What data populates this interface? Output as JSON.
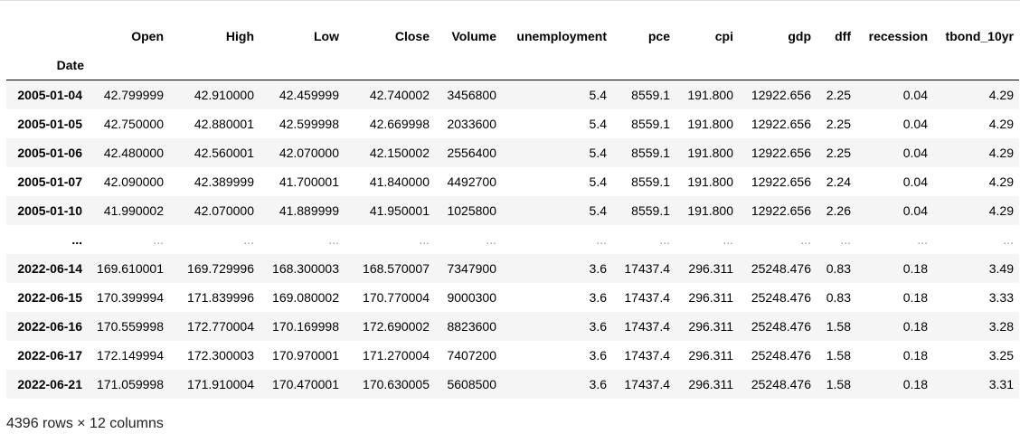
{
  "table": {
    "index_name": "Date",
    "columns": [
      "Open",
      "High",
      "Low",
      "Close",
      "Volume",
      "unemployment",
      "pce",
      "cpi",
      "gdp",
      "dff",
      "recession",
      "tbond_10yr"
    ],
    "rows": [
      {
        "date": "2005-01-04",
        "cells": [
          "42.799999",
          "42.910000",
          "42.459999",
          "42.740002",
          "3456800",
          "5.4",
          "8559.1",
          "191.800",
          "12922.656",
          "2.25",
          "0.04",
          "4.29"
        ]
      },
      {
        "date": "2005-01-05",
        "cells": [
          "42.750000",
          "42.880001",
          "42.599998",
          "42.669998",
          "2033600",
          "5.4",
          "8559.1",
          "191.800",
          "12922.656",
          "2.25",
          "0.04",
          "4.29"
        ]
      },
      {
        "date": "2005-01-06",
        "cells": [
          "42.480000",
          "42.560001",
          "42.070000",
          "42.150002",
          "2556400",
          "5.4",
          "8559.1",
          "191.800",
          "12922.656",
          "2.25",
          "0.04",
          "4.29"
        ]
      },
      {
        "date": "2005-01-07",
        "cells": [
          "42.090000",
          "42.389999",
          "41.700001",
          "41.840000",
          "4492700",
          "5.4",
          "8559.1",
          "191.800",
          "12922.656",
          "2.24",
          "0.04",
          "4.29"
        ]
      },
      {
        "date": "2005-01-10",
        "cells": [
          "41.990002",
          "42.070000",
          "41.889999",
          "41.950001",
          "1025800",
          "5.4",
          "8559.1",
          "191.800",
          "12922.656",
          "2.26",
          "0.04",
          "4.29"
        ]
      },
      {
        "date": "...",
        "cells": [
          "...",
          "...",
          "...",
          "...",
          "...",
          "...",
          "...",
          "...",
          "...",
          "...",
          "...",
          "..."
        ]
      },
      {
        "date": "2022-06-14",
        "cells": [
          "169.610001",
          "169.729996",
          "168.300003",
          "168.570007",
          "7347900",
          "3.6",
          "17437.4",
          "296.311",
          "25248.476",
          "0.83",
          "0.18",
          "3.49"
        ]
      },
      {
        "date": "2022-06-15",
        "cells": [
          "170.399994",
          "171.839996",
          "169.080002",
          "170.770004",
          "9000300",
          "3.6",
          "17437.4",
          "296.311",
          "25248.476",
          "0.83",
          "0.18",
          "3.33"
        ]
      },
      {
        "date": "2022-06-16",
        "cells": [
          "170.559998",
          "172.770004",
          "170.169998",
          "172.690002",
          "8823600",
          "3.6",
          "17437.4",
          "296.311",
          "25248.476",
          "1.58",
          "0.18",
          "3.28"
        ]
      },
      {
        "date": "2022-06-17",
        "cells": [
          "172.149994",
          "172.300003",
          "170.970001",
          "171.270004",
          "7407200",
          "3.6",
          "17437.4",
          "296.311",
          "25248.476",
          "1.58",
          "0.18",
          "3.25"
        ]
      },
      {
        "date": "2022-06-21",
        "cells": [
          "171.059998",
          "171.910004",
          "170.470001",
          "170.630005",
          "5608500",
          "3.6",
          "17437.4",
          "296.311",
          "25248.476",
          "1.58",
          "0.18",
          "3.31"
        ]
      }
    ]
  },
  "footer": {
    "shape_text": "4396 rows × 12 columns"
  }
}
